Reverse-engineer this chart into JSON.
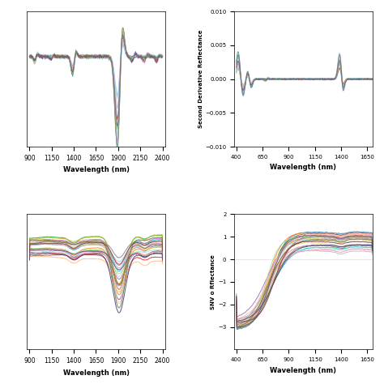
{
  "top_left": {
    "xlabel": "Wavelength (nm)",
    "ylabel": "",
    "xticks": [
      900,
      1150,
      1400,
      1650,
      1900,
      2150,
      2400
    ],
    "xlim": [
      870,
      2430
    ],
    "ylim": [
      -0.012,
      0.006
    ],
    "show_yticks": false
  },
  "top_right": {
    "xlabel": "Wavelength (nm)",
    "ylabel": "Second Derivative Reflectance",
    "xticks": [
      400,
      650,
      900,
      1150,
      1400,
      1650
    ],
    "xlim": [
      380,
      1700
    ],
    "ylim": [
      -0.01,
      0.01
    ],
    "yticks": [
      -0.01,
      -0.005,
      0,
      0.005,
      0.01
    ],
    "show_yticks": true
  },
  "bottom_left": {
    "xlabel": "Wavelength (nm)",
    "ylabel": "",
    "xticks": [
      900,
      1150,
      1400,
      1650,
      1900,
      2150,
      2400
    ],
    "xlim": [
      870,
      2430
    ],
    "ylim": [
      -1.0,
      0.7
    ],
    "show_yticks": false
  },
  "bottom_right": {
    "xlabel": "Wavelength (nm)",
    "ylabel": "SNV o Rflectance",
    "xticks": [
      400,
      650,
      900,
      1150,
      1400,
      1650
    ],
    "xlim": [
      380,
      1700
    ],
    "ylim": [
      -4,
      2
    ],
    "yticks": [
      -3,
      -2,
      -1,
      0,
      1,
      2
    ],
    "show_yticks": true
  },
  "colors": [
    "#1f77b4",
    "#ff7f0e",
    "#2ca02c",
    "#d62728",
    "#9467bd",
    "#8c564b",
    "#e377c2",
    "#7f7f7f",
    "#bcbd22",
    "#17becf",
    "#aec7e8",
    "#ffbb78",
    "#98df8a",
    "#ff9896",
    "#c5b0d5",
    "#c49c94",
    "#f7b6d2",
    "#c7c7c7",
    "#dbdb8d",
    "#9edae5",
    "#393b79",
    "#637939",
    "#8c6d31",
    "#843c39",
    "#7b4173"
  ],
  "n_samples": 25,
  "background_color": "#ffffff",
  "light_blue": "#a8c8e8"
}
